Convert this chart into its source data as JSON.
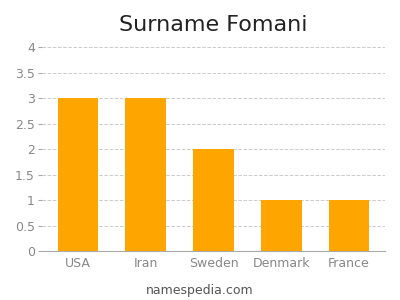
{
  "title": "Surname Fomani",
  "categories": [
    "USA",
    "Iran",
    "Sweden",
    "Denmark",
    "France"
  ],
  "values": [
    3,
    3,
    2,
    1,
    1
  ],
  "bar_color": "#FFA500",
  "ylim": [
    0,
    4.1
  ],
  "yticks": [
    0,
    0.5,
    1,
    1.5,
    2,
    2.5,
    3,
    3.5,
    4
  ],
  "ytick_labels": [
    "0",
    "0.5",
    "1",
    "1.5",
    "2",
    "2.5",
    "3",
    "3.5",
    "4"
  ],
  "grid_color": "#cccccc",
  "background_color": "#ffffff",
  "title_fontsize": 16,
  "tick_fontsize": 9,
  "tick_color": "#888888",
  "footer_text": "namespedia.com",
  "footer_fontsize": 9,
  "bar_width": 0.6
}
